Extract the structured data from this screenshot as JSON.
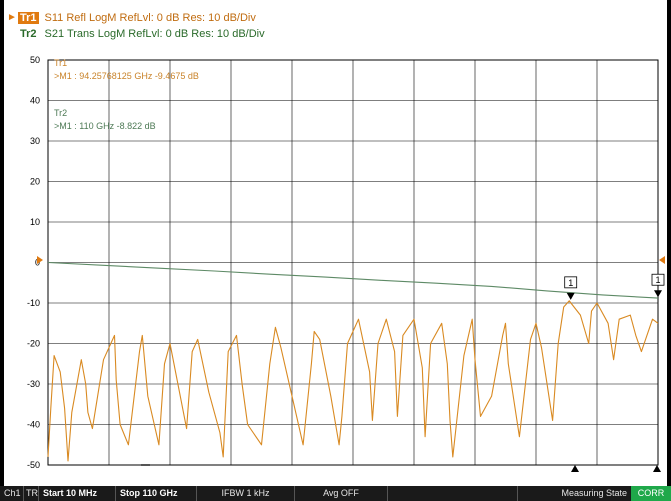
{
  "traces": [
    {
      "badge": "Tr1",
      "desc": "S11 Refl LogM RefLvl: 0  dB Res: 10  dB/Div",
      "color": "#d98a22"
    },
    {
      "badge": "Tr2",
      "desc": "S21 Trans LogM RefLvl: 0  dB Res: 10  dB/Div",
      "color": "#5e8a66"
    }
  ],
  "marker_readout": {
    "tr1_title": "Tr1",
    "tr1_value": ">M1  :  94.25768125 GHz  -9.4675  dB",
    "tr2_title": "Tr2",
    "tr2_value": ">M1  :  110 GHz  -8.822  dB"
  },
  "markers": [
    {
      "label": "1",
      "trace": "Tr1",
      "freq_ghz": 94.25768125,
      "value_db": -9.4675
    },
    {
      "label": "1",
      "trace": "Tr2",
      "freq_ghz": 110,
      "value_db": -8.822
    }
  ],
  "chart_data": {
    "type": "line",
    "x_range_ghz": [
      0.01,
      110
    ],
    "ylim": [
      -50,
      50
    ],
    "y_ticks": [
      50,
      40,
      30,
      20,
      10,
      0,
      -10,
      -20,
      -30,
      -40,
      -50
    ],
    "grid": true,
    "series": [
      {
        "name": "Tr2",
        "color": "#5e8a66",
        "x": [
          0,
          10,
          20,
          30,
          40,
          50,
          60,
          70,
          80,
          90,
          100,
          110
        ],
        "y": [
          0,
          -0.7,
          -1.4,
          -2.1,
          -2.9,
          -3.6,
          -4.4,
          -5.1,
          -5.9,
          -7.0,
          -8.0,
          -8.8
        ]
      },
      {
        "name": "Tr1",
        "color": "#d98a22",
        "x": [
          0,
          0.5,
          1.1,
          2.2,
          3.0,
          3.6,
          4.3,
          6.0,
          6.8,
          7.2,
          8.0,
          10.0,
          12.0,
          12.3,
          13.0,
          14.5,
          16.5,
          17.0,
          18.0,
          20.0,
          21.0,
          22.0,
          25.0,
          26.0,
          27.0,
          29.0,
          31.0,
          31.6,
          32.5,
          34.0,
          35.0,
          36.0,
          38.5,
          40.0,
          41.0,
          42.0,
          44.0,
          46.0,
          47.5,
          48.0,
          49.0,
          51.0,
          52.5,
          53.0,
          54.0,
          56.0,
          58.0,
          58.5,
          59.5,
          61.0,
          62.5,
          63.0,
          64.0,
          66.0,
          67.5,
          68.0,
          69.0,
          71.0,
          72.0,
          72.5,
          73.0,
          75.0,
          76.5,
          77.0,
          78.0,
          80.0,
          82.0,
          82.5,
          83.0,
          85.0,
          87.0,
          88.0,
          89.0,
          91.0,
          92.0,
          93.0,
          94.0,
          94.3,
          96.0,
          97.5,
          98.0,
          99.0,
          101.0,
          102.0,
          103.0,
          105.0,
          106.0,
          107.0,
          109.0,
          110.0
        ],
        "y": [
          -48,
          -36,
          -23,
          -27,
          -36,
          -49,
          -37,
          -24,
          -30,
          -37,
          -41,
          -24,
          -18,
          -29,
          -40,
          -45,
          -22,
          -18,
          -33,
          -45,
          -25,
          -20,
          -41,
          -22,
          -19,
          -32,
          -42,
          -48,
          -22,
          -18,
          -30,
          -40,
          -45,
          -25,
          -16,
          -21,
          -33,
          -45,
          -25,
          -17,
          -19,
          -33,
          -45,
          -38,
          -20,
          -14,
          -27,
          -39,
          -20,
          -14,
          -22,
          -38,
          -18,
          -14,
          -26,
          -43,
          -20,
          -15,
          -25,
          -39,
          -48,
          -23,
          -14,
          -24,
          -38,
          -33,
          -18,
          -15,
          -25,
          -43,
          -19,
          -15,
          -21,
          -39,
          -20,
          -11,
          -9.4675,
          -10,
          -13,
          -20,
          -12,
          -10,
          -15,
          -24,
          -14,
          -13,
          -18,
          -22,
          -14,
          -15
        ]
      }
    ]
  },
  "status_bar": {
    "ch": "Ch1",
    "tr": "TR",
    "start": "Start 10 MHz",
    "stop": "Stop 110 GHz",
    "ifbw": "IFBW 1 kHz",
    "avg": "Avg OFF",
    "state": "Measuring State",
    "corr": "CORR"
  }
}
